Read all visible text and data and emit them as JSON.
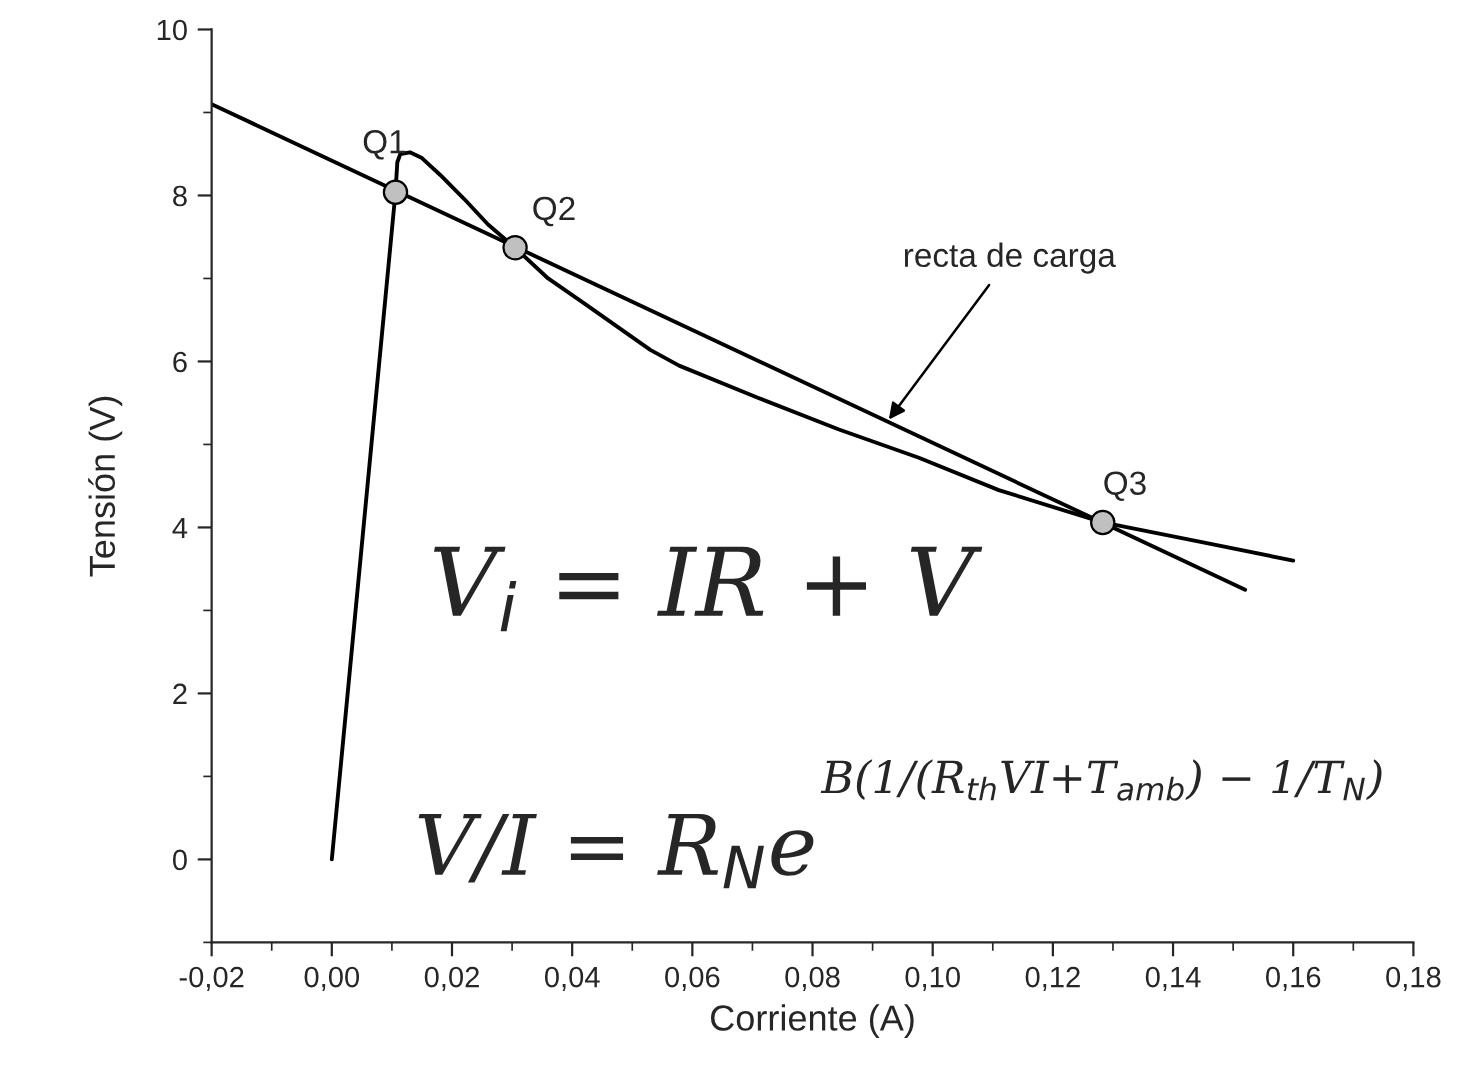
{
  "chart_data": {
    "type": "line",
    "xlabel": "Corriente (A)",
    "ylabel": "Tensión (V)",
    "xlim": [
      -0.02,
      0.18
    ],
    "ylim": [
      -1,
      10
    ],
    "xticks": [
      {
        "value": -0.02,
        "label": "-0,02"
      },
      {
        "value": 0.0,
        "label": "0,00"
      },
      {
        "value": 0.02,
        "label": "0,02"
      },
      {
        "value": 0.04,
        "label": "0,04"
      },
      {
        "value": 0.06,
        "label": "0,06"
      },
      {
        "value": 0.08,
        "label": "0,08"
      },
      {
        "value": 0.1,
        "label": "0,10"
      },
      {
        "value": 0.12,
        "label": "0,12"
      },
      {
        "value": 0.14,
        "label": "0,14"
      },
      {
        "value": 0.16,
        "label": "0,16"
      },
      {
        "value": 0.18,
        "label": "0,18"
      }
    ],
    "yticks": [
      0,
      2,
      4,
      6,
      8,
      10
    ],
    "grid": false,
    "legend": false,
    "series": [
      {
        "color": "#000000",
        "x": [
          0.0,
          0.0106,
          0.0109,
          0.0114,
          0.013,
          0.015,
          0.018,
          0.022,
          0.026,
          0.0305,
          0.036,
          0.042,
          0.053,
          0.0578,
          0.071,
          0.0844,
          0.0977,
          0.111,
          0.1283,
          0.145,
          0.16
        ],
        "values": [
          0.0,
          8.04,
          8.4,
          8.5,
          8.52,
          8.45,
          8.25,
          7.96,
          7.65,
          7.37,
          7.0,
          6.7,
          6.14,
          5.95,
          5.56,
          5.18,
          4.84,
          4.45,
          4.06,
          3.82,
          3.6
        ]
      },
      {
        "color": "#000000",
        "x": [
          -0.02,
          0.152
        ],
        "values": [
          9.1,
          3.25
        ]
      },
      {
        "type": "scatter",
        "color": "#c0c0c0",
        "marker": "circle",
        "x": [
          0.0106,
          0.0305,
          0.1283
        ],
        "values": [
          8.04,
          7.37,
          4.06
        ]
      }
    ],
    "annotations": [
      {
        "text": "Q1",
        "x": 0.0106,
        "y": 8.04
      },
      {
        "text": "Q2",
        "x": 0.0305,
        "y": 7.37
      },
      {
        "text": "Q3",
        "x": 0.1283,
        "y": 4.06
      },
      {
        "text": "recta de carga",
        "x": 0.0927,
        "y": 5.3
      },
      "V$_{i}$ = IR + V",
      "V/I = R$_{N}$e",
      "B(1/(R$_{th}$VI+T$_{amb}$) − 1/T$_{N}$)"
    ]
  }
}
